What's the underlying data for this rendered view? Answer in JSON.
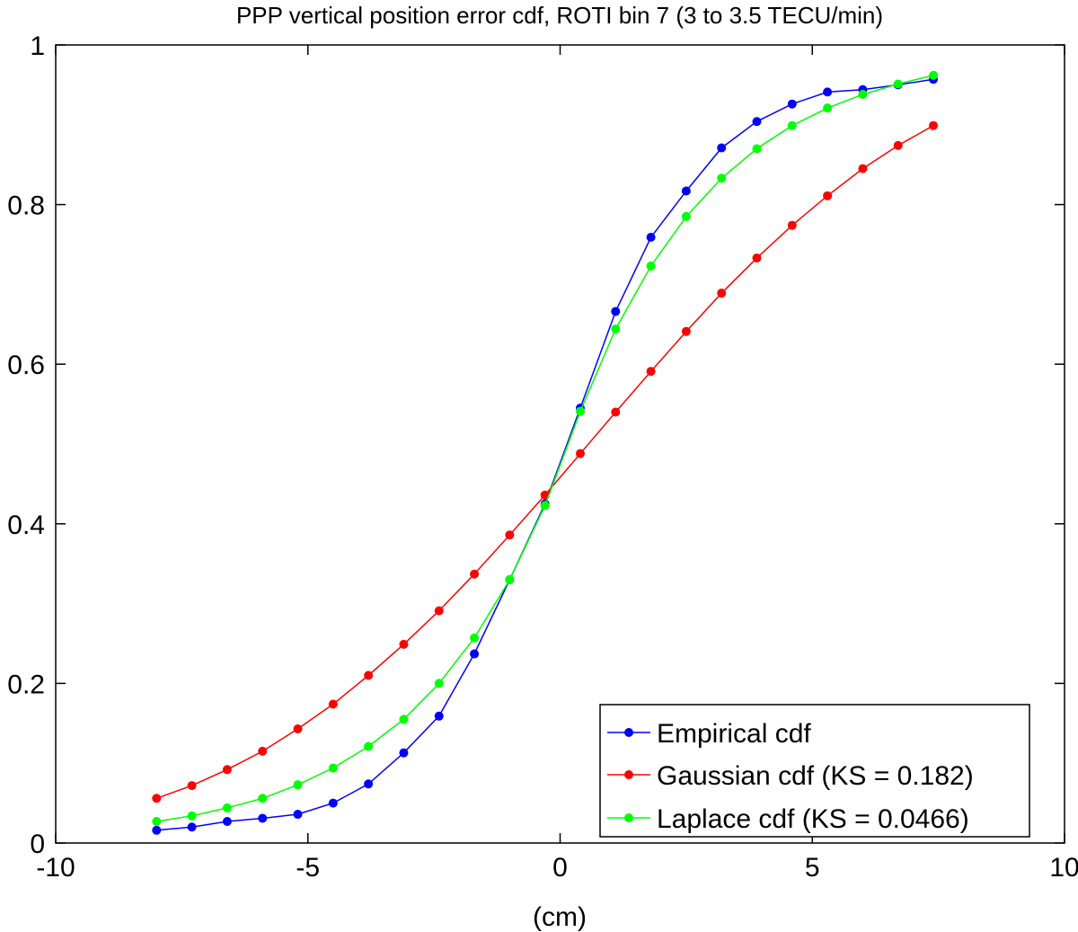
{
  "chart_data": {
    "type": "line",
    "title": "PPP vertical position error cdf, ROTI bin 7 (3 to 3.5 TECU/min)",
    "xlabel": "(cm)",
    "ylabel": "",
    "xlim": [
      -10,
      10
    ],
    "ylim": [
      0,
      1
    ],
    "x_ticks": [
      -10,
      -5,
      0,
      5,
      10
    ],
    "x_tick_labels": [
      "-10",
      "-5",
      "0",
      "5",
      "10"
    ],
    "y_ticks": [
      0,
      0.2,
      0.4,
      0.6,
      0.8,
      1
    ],
    "y_tick_labels": [
      "0",
      "0.2",
      "0.4",
      "0.6",
      "0.8",
      "1"
    ],
    "grid": false,
    "legend_position": "bottom-right",
    "x": [
      -8.0,
      -7.3,
      -6.6,
      -5.9,
      -5.2,
      -4.5,
      -3.8,
      -3.1,
      -2.4,
      -1.7,
      -1.0,
      -0.3,
      0.4,
      1.1,
      1.8,
      2.5,
      3.2,
      3.9,
      4.6,
      5.3,
      6.0,
      6.7,
      7.4
    ],
    "series": [
      {
        "name": "Empirical cdf",
        "color": "#0000ff",
        "values": [
          0.016,
          0.02,
          0.027,
          0.031,
          0.036,
          0.05,
          0.074,
          0.113,
          0.159,
          0.237,
          0.33,
          0.425,
          0.545,
          0.666,
          0.759,
          0.817,
          0.871,
          0.904,
          0.926,
          0.941,
          0.944,
          0.95,
          0.957
        ]
      },
      {
        "name": "Gaussian cdf (KS = 0.182)",
        "color": "#ff0000",
        "values": [
          0.056,
          0.072,
          0.092,
          0.115,
          0.143,
          0.174,
          0.21,
          0.249,
          0.291,
          0.337,
          0.386,
          0.436,
          0.488,
          0.54,
          0.591,
          0.641,
          0.689,
          0.733,
          0.774,
          0.811,
          0.845,
          0.874,
          0.899
        ]
      },
      {
        "name": "Laplace cdf (KS = 0.0466)",
        "color": "#00ff00",
        "values": [
          0.027,
          0.034,
          0.044,
          0.056,
          0.073,
          0.094,
          0.121,
          0.155,
          0.2,
          0.257,
          0.33,
          0.423,
          0.541,
          0.644,
          0.723,
          0.785,
          0.833,
          0.87,
          0.899,
          0.921,
          0.938,
          0.951,
          0.962
        ]
      }
    ]
  }
}
